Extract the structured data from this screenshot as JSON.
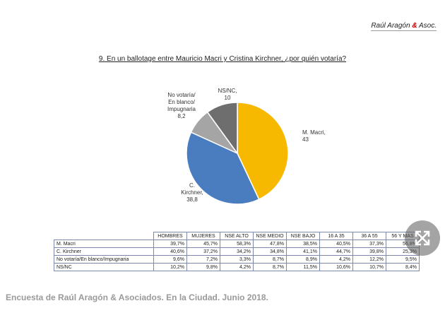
{
  "header": {
    "name": "Raúl Aragón",
    "amp": "&",
    "suffix": "Asoc."
  },
  "chart_data": {
    "type": "pie",
    "title": "9. En un ballotage entre Mauricio Macri y Cristina Kirchner, ¿por quién votaría?",
    "categories": [
      "M. Macri,",
      "C.\nKirchner,",
      "No votaría/\nEn blanco/\nImpugnaria",
      "NS/NC,"
    ],
    "values": [
      43,
      38.8,
      8.2,
      10
    ],
    "value_labels": [
      "43",
      "38,8",
      "8,2",
      "10"
    ],
    "colors": [
      "#f7b900",
      "#4a7cc0",
      "#a5a5a5",
      "#6e6e6e"
    ]
  },
  "table": {
    "header": [
      "HOMBRES",
      "MUJERES",
      "NSE ALTO",
      "NSE MEDIO",
      "NSE BAJO",
      "16 A 35",
      "36 A 55",
      "56 Y MAS"
    ],
    "rows": [
      [
        "M. Macri",
        "39,7%",
        "45,7%",
        "58,3%",
        "47,8%",
        "38,5%",
        "40,5%",
        "37,3%",
        "56,8%"
      ],
      [
        "C. Kirchner",
        "40,6%",
        "37,2%",
        "34,2%",
        "34,8%",
        "41,1%",
        "44,7%",
        "39,8%",
        "25,3%"
      ],
      [
        "No votaría/En blanco/Impugnaria",
        "9,6%",
        "7,2%",
        "3,3%",
        "8,7%",
        "8,9%",
        "4,2%",
        "12,2%",
        "9,5%"
      ],
      [
        "NS/NC",
        "10,2%",
        "9,8%",
        "4,2%",
        "8,7%",
        "11,5%",
        "10,6%",
        "10,7%",
        "8,4%"
      ]
    ]
  },
  "caption": "Encuesta de Raúl Aragón & Asociados. En la Ciudad. Junio 2018."
}
